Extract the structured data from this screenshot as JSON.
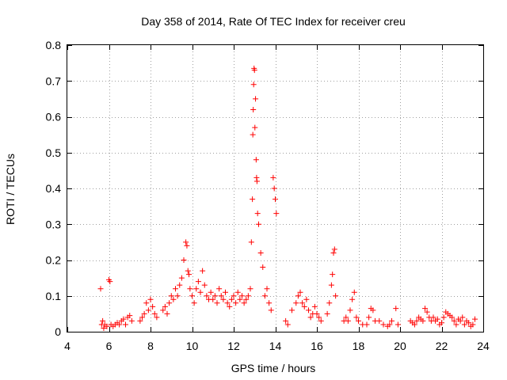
{
  "chart_data": {
    "type": "scatter",
    "title": "Day 358 of 2014, Rate Of TEC Index for receiver creu",
    "xlabel": "GPS time / hours",
    "ylabel": "ROTI / TECUs",
    "xlim": [
      4,
      24
    ],
    "ylim": [
      0,
      0.8
    ],
    "xticks": [
      "4",
      "6",
      "8",
      "10",
      "12",
      "14",
      "16",
      "18",
      "20",
      "22",
      "24"
    ],
    "yticks": [
      "0",
      "0.1",
      "0.2",
      "0.3",
      "0.4",
      "0.5",
      "0.6",
      "0.7",
      "0.8"
    ],
    "grid": true,
    "marker": "+",
    "marker_color": "#ff0000",
    "series": [
      {
        "name": "ROTI",
        "x": [
          5.6,
          5.65,
          5.7,
          5.75,
          5.8,
          5.9,
          6.0,
          6.05,
          6.1,
          6.2,
          6.3,
          6.4,
          6.5,
          6.6,
          6.7,
          6.8,
          6.9,
          7.0,
          7.1,
          7.5,
          7.6,
          7.7,
          7.8,
          7.9,
          8.0,
          8.1,
          8.2,
          8.3,
          8.6,
          8.7,
          8.8,
          8.9,
          9.0,
          9.1,
          9.2,
          9.3,
          9.4,
          9.5,
          9.6,
          9.7,
          9.75,
          9.8,
          9.85,
          9.9,
          10.0,
          10.1,
          10.2,
          10.3,
          10.4,
          10.5,
          10.6,
          10.7,
          10.8,
          10.9,
          11.0,
          11.1,
          11.2,
          11.3,
          11.4,
          11.5,
          11.6,
          11.7,
          11.8,
          11.9,
          12.0,
          12.1,
          12.2,
          12.3,
          12.4,
          12.5,
          12.6,
          12.7,
          12.8,
          12.85,
          12.9,
          12.92,
          12.94,
          12.96,
          12.98,
          13.0,
          13.02,
          13.05,
          13.08,
          13.1,
          13.12,
          13.15,
          13.2,
          13.3,
          13.4,
          13.5,
          13.6,
          13.7,
          13.8,
          13.9,
          13.95,
          14.0,
          14.05,
          14.5,
          14.6,
          14.8,
          15.0,
          15.1,
          15.2,
          15.3,
          15.4,
          15.5,
          15.6,
          15.7,
          15.8,
          15.9,
          16.0,
          16.1,
          16.2,
          16.5,
          16.6,
          16.7,
          16.75,
          16.8,
          16.85,
          16.9,
          17.3,
          17.4,
          17.5,
          17.6,
          17.7,
          17.8,
          17.9,
          18.0,
          18.2,
          18.4,
          18.5,
          18.6,
          18.7,
          18.8,
          19.0,
          19.2,
          19.4,
          19.5,
          19.6,
          19.8,
          19.9,
          20.5,
          20.6,
          20.7,
          20.8,
          20.9,
          21.0,
          21.1,
          21.2,
          21.3,
          21.4,
          21.5,
          21.6,
          21.7,
          21.8,
          21.9,
          22.0,
          22.1,
          22.2,
          22.3,
          22.4,
          22.5,
          22.6,
          22.7,
          22.8,
          22.9,
          23.0,
          23.1,
          23.2,
          23.3,
          23.4,
          23.5,
          23.6
        ],
        "y": [
          0.12,
          0.02,
          0.03,
          0.01,
          0.02,
          0.015,
          0.145,
          0.14,
          0.02,
          0.015,
          0.02,
          0.025,
          0.02,
          0.03,
          0.035,
          0.02,
          0.04,
          0.045,
          0.03,
          0.03,
          0.04,
          0.05,
          0.08,
          0.06,
          0.09,
          0.07,
          0.05,
          0.04,
          0.06,
          0.07,
          0.05,
          0.08,
          0.1,
          0.09,
          0.12,
          0.1,
          0.13,
          0.15,
          0.2,
          0.25,
          0.24,
          0.17,
          0.16,
          0.12,
          0.1,
          0.08,
          0.12,
          0.14,
          0.11,
          0.17,
          0.13,
          0.1,
          0.09,
          0.11,
          0.09,
          0.1,
          0.08,
          0.12,
          0.1,
          0.09,
          0.11,
          0.08,
          0.07,
          0.09,
          0.1,
          0.08,
          0.11,
          0.09,
          0.1,
          0.08,
          0.09,
          0.1,
          0.12,
          0.25,
          0.37,
          0.55,
          0.62,
          0.69,
          0.735,
          0.73,
          0.57,
          0.65,
          0.48,
          0.43,
          0.42,
          0.33,
          0.3,
          0.22,
          0.18,
          0.1,
          0.12,
          0.08,
          0.06,
          0.43,
          0.4,
          0.37,
          0.33,
          0.03,
          0.02,
          0.06,
          0.08,
          0.1,
          0.11,
          0.08,
          0.07,
          0.09,
          0.06,
          0.04,
          0.05,
          0.07,
          0.05,
          0.04,
          0.03,
          0.05,
          0.08,
          0.13,
          0.16,
          0.22,
          0.23,
          0.1,
          0.03,
          0.04,
          0.03,
          0.06,
          0.09,
          0.11,
          0.04,
          0.03,
          0.02,
          0.02,
          0.04,
          0.065,
          0.06,
          0.03,
          0.03,
          0.02,
          0.015,
          0.02,
          0.03,
          0.065,
          0.02,
          0.03,
          0.025,
          0.02,
          0.03,
          0.04,
          0.035,
          0.03,
          0.065,
          0.055,
          0.04,
          0.03,
          0.04,
          0.03,
          0.035,
          0.02,
          0.025,
          0.04,
          0.055,
          0.05,
          0.045,
          0.04,
          0.03,
          0.02,
          0.035,
          0.03,
          0.04,
          0.02,
          0.03,
          0.025,
          0.015,
          0.02,
          0.035
        ]
      }
    ]
  }
}
